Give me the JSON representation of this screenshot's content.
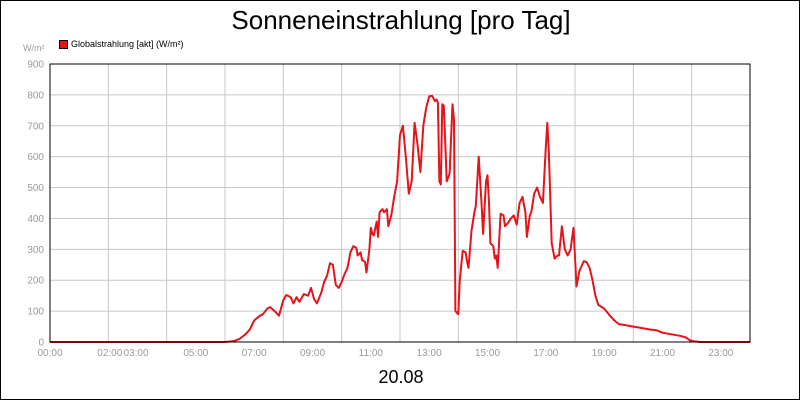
{
  "chart_data": {
    "type": "line",
    "title": "Sonneneinstrahlung [pro Tag]",
    "ylabel": "W/m²",
    "xlabel": "20.08",
    "ylim": [
      0,
      900
    ],
    "xlim": [
      0,
      24
    ],
    "grid": true,
    "legend_position": "top-left",
    "y_ticks": [
      "0",
      "100",
      "200",
      "300",
      "400",
      "500",
      "600",
      "700",
      "800",
      "900"
    ],
    "x_ticks": [
      {
        "t": 0,
        "label": "00:00"
      },
      {
        "t": 2.05,
        "label": "02:00"
      },
      {
        "t": 2.95,
        "label": "03:00"
      },
      {
        "t": 5,
        "label": "05:00"
      },
      {
        "t": 7,
        "label": "07:00"
      },
      {
        "t": 9,
        "label": "09:00"
      },
      {
        "t": 11,
        "label": "11:00"
      },
      {
        "t": 13,
        "label": "13:00"
      },
      {
        "t": 15,
        "label": "15:00"
      },
      {
        "t": 17,
        "label": "17:00"
      },
      {
        "t": 19,
        "label": "19:00"
      },
      {
        "t": 21,
        "label": "21:00"
      },
      {
        "t": 23,
        "label": "23:00"
      }
    ],
    "series": [
      {
        "name": "Globalstrahlung [akt] (W/m²)",
        "color": "#e5141b",
        "points": [
          [
            0,
            0
          ],
          [
            6.0,
            0
          ],
          [
            6.3,
            3
          ],
          [
            6.5,
            10
          ],
          [
            6.7,
            25
          ],
          [
            6.85,
            40
          ],
          [
            7.0,
            70
          ],
          [
            7.2,
            85
          ],
          [
            7.3,
            90
          ],
          [
            7.45,
            108
          ],
          [
            7.55,
            113
          ],
          [
            7.7,
            100
          ],
          [
            7.85,
            85
          ],
          [
            8.0,
            135
          ],
          [
            8.1,
            152
          ],
          [
            8.25,
            145
          ],
          [
            8.35,
            125
          ],
          [
            8.45,
            145
          ],
          [
            8.55,
            130
          ],
          [
            8.7,
            155
          ],
          [
            8.85,
            150
          ],
          [
            8.95,
            175
          ],
          [
            9.05,
            140
          ],
          [
            9.15,
            125
          ],
          [
            9.3,
            160
          ],
          [
            9.4,
            195
          ],
          [
            9.5,
            215
          ],
          [
            9.6,
            255
          ],
          [
            9.7,
            250
          ],
          [
            9.8,
            185
          ],
          [
            9.9,
            175
          ],
          [
            10.0,
            195
          ],
          [
            10.1,
            220
          ],
          [
            10.2,
            240
          ],
          [
            10.3,
            290
          ],
          [
            10.4,
            310
          ],
          [
            10.5,
            305
          ],
          [
            10.55,
            280
          ],
          [
            10.65,
            290
          ],
          [
            10.7,
            265
          ],
          [
            10.8,
            260
          ],
          [
            10.85,
            225
          ],
          [
            10.95,
            300
          ],
          [
            11.0,
            370
          ],
          [
            11.05,
            350
          ],
          [
            11.1,
            345
          ],
          [
            11.2,
            390
          ],
          [
            11.25,
            340
          ],
          [
            11.3,
            420
          ],
          [
            11.4,
            430
          ],
          [
            11.45,
            420
          ],
          [
            11.55,
            430
          ],
          [
            11.6,
            375
          ],
          [
            11.7,
            410
          ],
          [
            11.8,
            470
          ],
          [
            11.9,
            520
          ],
          [
            12.0,
            670
          ],
          [
            12.1,
            700
          ],
          [
            12.2,
            600
          ],
          [
            12.3,
            480
          ],
          [
            12.4,
            520
          ],
          [
            12.5,
            710
          ],
          [
            12.6,
            640
          ],
          [
            12.7,
            550
          ],
          [
            12.8,
            700
          ],
          [
            12.9,
            760
          ],
          [
            13.0,
            795
          ],
          [
            13.1,
            797
          ],
          [
            13.2,
            780
          ],
          [
            13.25,
            785
          ],
          [
            13.3,
            775
          ],
          [
            13.35,
            520
          ],
          [
            13.4,
            510
          ],
          [
            13.45,
            770
          ],
          [
            13.5,
            765
          ],
          [
            13.55,
            650
          ],
          [
            13.6,
            520
          ],
          [
            13.7,
            545
          ],
          [
            13.8,
            770
          ],
          [
            13.85,
            720
          ],
          [
            13.9,
            100
          ],
          [
            14.0,
            90
          ],
          [
            14.05,
            200
          ],
          [
            14.15,
            295
          ],
          [
            14.25,
            290
          ],
          [
            14.3,
            260
          ],
          [
            14.35,
            240
          ],
          [
            14.45,
            360
          ],
          [
            14.55,
            420
          ],
          [
            14.6,
            440
          ],
          [
            14.7,
            600
          ],
          [
            14.8,
            440
          ],
          [
            14.85,
            350
          ],
          [
            14.95,
            520
          ],
          [
            15.0,
            540
          ],
          [
            15.05,
            450
          ],
          [
            15.1,
            320
          ],
          [
            15.2,
            310
          ],
          [
            15.25,
            270
          ],
          [
            15.3,
            280
          ],
          [
            15.35,
            240
          ],
          [
            15.45,
            415
          ],
          [
            15.55,
            410
          ],
          [
            15.6,
            375
          ],
          [
            15.7,
            385
          ],
          [
            15.8,
            400
          ],
          [
            15.9,
            410
          ],
          [
            16.0,
            380
          ],
          [
            16.1,
            450
          ],
          [
            16.2,
            470
          ],
          [
            16.3,
            420
          ],
          [
            16.35,
            340
          ],
          [
            16.45,
            410
          ],
          [
            16.5,
            420
          ],
          [
            16.6,
            480
          ],
          [
            16.7,
            500
          ],
          [
            16.8,
            470
          ],
          [
            16.9,
            450
          ],
          [
            17.0,
            630
          ],
          [
            17.05,
            710
          ],
          [
            17.1,
            620
          ],
          [
            17.2,
            320
          ],
          [
            17.3,
            270
          ],
          [
            17.4,
            280
          ],
          [
            17.45,
            280
          ],
          [
            17.55,
            375
          ],
          [
            17.65,
            300
          ],
          [
            17.75,
            280
          ],
          [
            17.85,
            300
          ],
          [
            17.95,
            370
          ],
          [
            18.05,
            180
          ],
          [
            18.15,
            230
          ],
          [
            18.3,
            262
          ],
          [
            18.4,
            258
          ],
          [
            18.5,
            240
          ],
          [
            18.6,
            200
          ],
          [
            18.7,
            150
          ],
          [
            18.8,
            120
          ],
          [
            19.0,
            108
          ],
          [
            19.2,
            85
          ],
          [
            19.35,
            70
          ],
          [
            19.5,
            58
          ],
          [
            19.7,
            55
          ],
          [
            20.0,
            50
          ],
          [
            20.3,
            45
          ],
          [
            20.6,
            40
          ],
          [
            20.8,
            38
          ],
          [
            21.0,
            30
          ],
          [
            21.3,
            25
          ],
          [
            21.6,
            20
          ],
          [
            21.8,
            15
          ],
          [
            21.95,
            5
          ],
          [
            22.1,
            2
          ],
          [
            22.3,
            0
          ],
          [
            24,
            0
          ]
        ]
      }
    ],
    "date_label": "20.08"
  }
}
